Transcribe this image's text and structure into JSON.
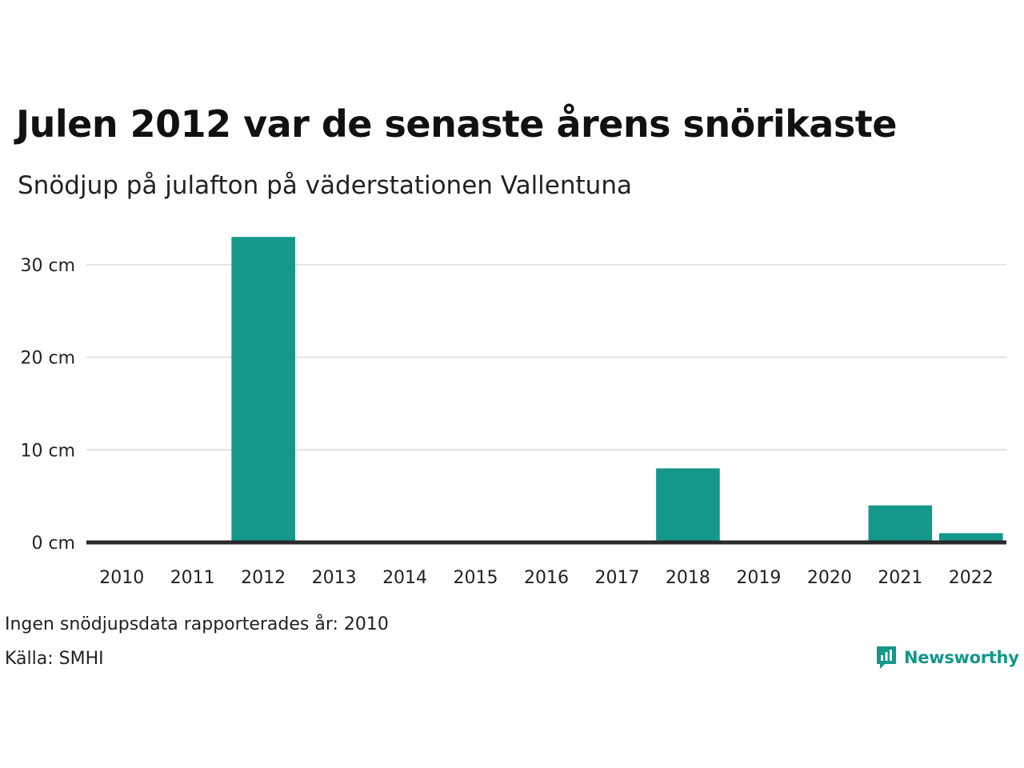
{
  "title": "Julen 2012 var de senaste årens snörikaste",
  "subtitle": "Snödjup på julafton på väderstationen Vallentuna",
  "footnote": "Ingen snödjupsdata rapporterades år: 2010",
  "source": "Källa: SMHI",
  "brand": {
    "name": "Newsworthy",
    "color": "#15978a",
    "icon": "bar-chart-speech-bubble-icon"
  },
  "chart_data": {
    "type": "bar",
    "categories": [
      "2010",
      "2011",
      "2012",
      "2013",
      "2014",
      "2015",
      "2016",
      "2017",
      "2018",
      "2019",
      "2020",
      "2021",
      "2022"
    ],
    "values": [
      0,
      0,
      33,
      0,
      0,
      0,
      0,
      0,
      8,
      0,
      0,
      4,
      1
    ],
    "y_ticks": [
      0,
      10,
      20,
      30
    ],
    "y_tick_labels": [
      "0 cm",
      "10 cm",
      "20 cm",
      "30 cm"
    ],
    "ylim": [
      0,
      35
    ],
    "grid": true,
    "bar_color": "#15978a",
    "grid_color": "#e3e3e3",
    "baseline_color": "#2a2a2a"
  }
}
